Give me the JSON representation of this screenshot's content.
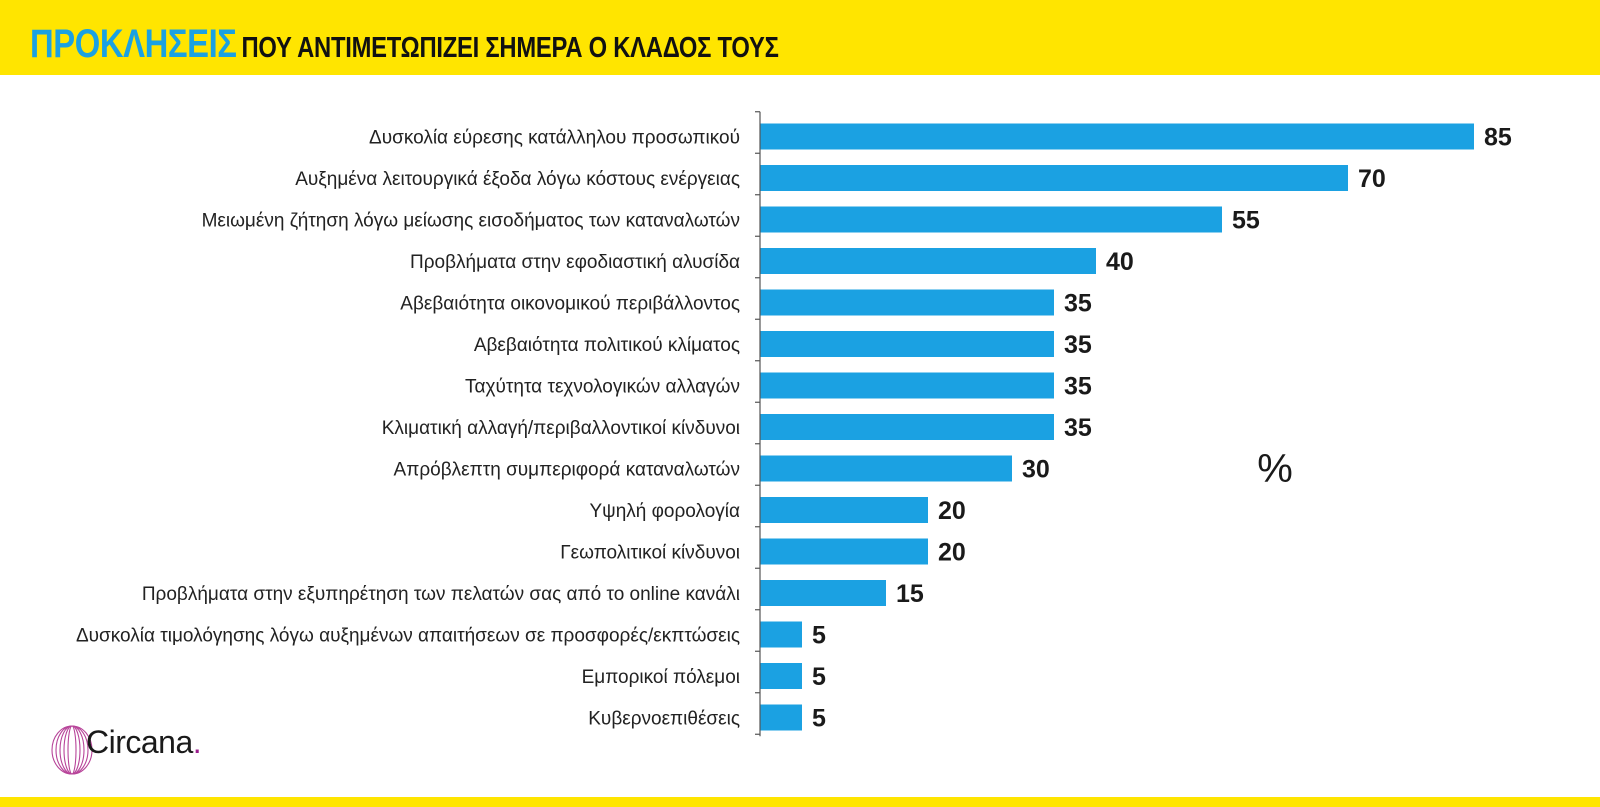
{
  "header": {
    "title_highlight": "ΠΡΟΚΛΗΣΕΙΣ",
    "title_rest": "ΠΟΥ ΑΝΤΙΜΕΤΩΠΙΖΕΙ ΣΗΜΕΡΑ Ο ΚΛΑΔΟΣ ΤΟΥΣ"
  },
  "colors": {
    "band": "#FFE500",
    "title_highlight": "#1BA1E2",
    "bar": "#1BA1E2",
    "logo_ring": "#B0308F"
  },
  "chart_data": {
    "type": "bar",
    "orientation": "horizontal",
    "title": "ΠΡΟΚΛΗΣΕΙΣ ΠΟΥ ΑΝΤΙΜΕΤΩΠΙΖΕΙ ΣΗΜΕΡΑ Ο ΚΛΑΔΟΣ ΤΟΥΣ",
    "unit": "%",
    "categories": [
      "Δυσκολία εύρεσης κατάλληλου προσωπικού",
      "Αυξημένα λειτουργικά έξοδα λόγω κόστους ενέργειας",
      "Μειωμένη ζήτηση λόγω μείωσης εισοδήματος των καταναλωτών",
      "Προβλήματα στην εφοδιαστική αλυσίδα",
      "Αβεβαιότητα οικονομικού περιβάλλοντος",
      "Αβεβαιότητα πολιτικού κλίματος",
      "Ταχύτητα τεχνολογικών αλλαγών",
      "Κλιματική αλλαγή/περιβαλλοντικοί κίνδυνοι",
      "Απρόβλεπτη συμπεριφορά καταναλωτών",
      "Υψηλή φορολογία",
      "Γεωπολιτικοί κίνδυνοι",
      "Προβλήματα στην εξυπηρέτηση των πελατών σας από το online κανάλι",
      "Δυσκολία τιμολόγησης λόγω αυξημένων απαιτήσεων σε προσφορές/εκπτώσεις",
      "Εμπορικοί πόλεμοι",
      "Κυβερνοεπιθέσεις"
    ],
    "values": [
      85,
      70,
      55,
      40,
      35,
      35,
      35,
      35,
      30,
      20,
      20,
      15,
      5,
      5,
      5
    ],
    "xlim": [
      0,
      100
    ],
    "grid": false,
    "legend": "none"
  },
  "logo": {
    "name": "Circana",
    "dot": "."
  }
}
